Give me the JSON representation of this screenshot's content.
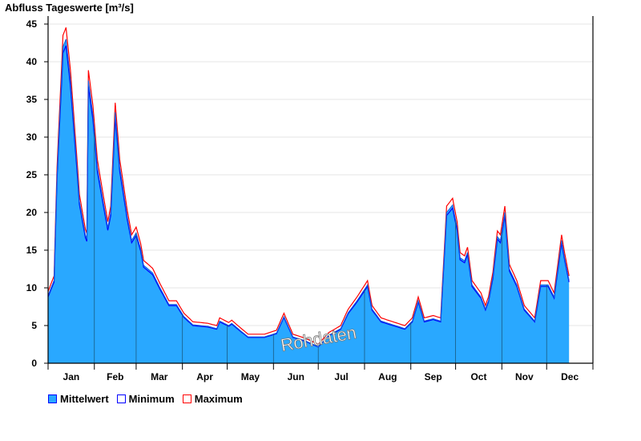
{
  "chart_data": {
    "type": "area",
    "title": "Abfluss Tageswerte [m³/s]",
    "xlabel": "",
    "ylabel": "Abfluss Tageswerte [m³/s]",
    "ylim": [
      0,
      45
    ],
    "yticks": [
      "0",
      "5",
      "10",
      "15",
      "20",
      "25",
      "30",
      "35",
      "40",
      "45"
    ],
    "x_days": 365,
    "months": [
      "Jan",
      "Feb",
      "Mar",
      "Apr",
      "May",
      "Jun",
      "Jul",
      "Aug",
      "Sep",
      "Oct",
      "Nov",
      "Dec"
    ],
    "month_starts": [
      0,
      31,
      59,
      90,
      120,
      151,
      181,
      212,
      243,
      273,
      304,
      334,
      365
    ],
    "grid": true,
    "legend_position": "bottom-left",
    "watermark": "Rohdaten",
    "colors": {
      "mean_fill": "#29a8ff",
      "min_line": "#0000ff",
      "max_line": "#ff0000",
      "grid": "#e6e6e6"
    },
    "series": [
      {
        "name": "Mittelwert",
        "key": "mean",
        "points": [
          [
            0,
            9
          ],
          [
            4,
            11
          ],
          [
            6,
            25
          ],
          [
            10,
            42
          ],
          [
            12,
            43
          ],
          [
            15,
            37.5
          ],
          [
            19,
            27
          ],
          [
            21,
            21.5
          ],
          [
            25,
            17
          ],
          [
            26,
            16.5
          ],
          [
            27,
            37.5
          ],
          [
            30,
            33
          ],
          [
            33,
            26
          ],
          [
            36,
            22.5
          ],
          [
            40,
            18
          ],
          [
            42,
            20
          ],
          [
            45,
            33.3
          ],
          [
            48,
            26
          ],
          [
            53,
            19.5
          ],
          [
            56,
            16.3
          ],
          [
            59,
            17.3
          ],
          [
            62,
            15.2
          ],
          [
            64,
            13
          ],
          [
            70,
            12
          ],
          [
            75,
            10
          ],
          [
            81,
            7.8
          ],
          [
            86,
            7.8
          ],
          [
            91,
            6.2
          ],
          [
            97,
            5.1
          ],
          [
            107,
            4.9
          ],
          [
            113,
            4.6
          ],
          [
            115,
            5.6
          ],
          [
            121,
            5
          ],
          [
            123,
            5.3
          ],
          [
            129,
            4.3
          ],
          [
            134,
            3.5
          ],
          [
            145,
            3.5
          ],
          [
            153,
            4
          ],
          [
            158,
            6.2
          ],
          [
            164,
            3.5
          ],
          [
            172,
            3
          ],
          [
            181,
            2.2
          ],
          [
            188,
            3.7
          ],
          [
            196,
            4.6
          ],
          [
            201,
            6.7
          ],
          [
            207,
            8.3
          ],
          [
            214,
            10.4
          ],
          [
            217,
            7.2
          ],
          [
            223,
            5.6
          ],
          [
            231,
            5.1
          ],
          [
            239,
            4.6
          ],
          [
            244,
            5.6
          ],
          [
            248,
            8.3
          ],
          [
            252,
            5.6
          ],
          [
            258,
            5.9
          ],
          [
            263,
            5.6
          ],
          [
            267,
            20
          ],
          [
            271,
            21
          ],
          [
            274,
            18
          ],
          [
            276,
            14
          ],
          [
            279,
            13.6
          ],
          [
            281,
            14.7
          ],
          [
            284,
            10.4
          ],
          [
            290,
            8.8
          ],
          [
            293,
            7.2
          ],
          [
            295,
            8.3
          ],
          [
            298,
            11.5
          ],
          [
            301,
            16.8
          ],
          [
            303,
            16.3
          ],
          [
            306,
            20
          ],
          [
            309,
            12.5
          ],
          [
            314,
            10.4
          ],
          [
            319,
            7.2
          ],
          [
            326,
            5.6
          ],
          [
            330,
            10.4
          ],
          [
            335,
            10.4
          ],
          [
            339,
            8.8
          ],
          [
            344,
            16.3
          ],
          [
            346,
            14
          ],
          [
            349,
            11
          ]
        ]
      },
      {
        "name": "Minimum",
        "key": "min"
      },
      {
        "name": "Maximum",
        "key": "max"
      }
    ]
  }
}
